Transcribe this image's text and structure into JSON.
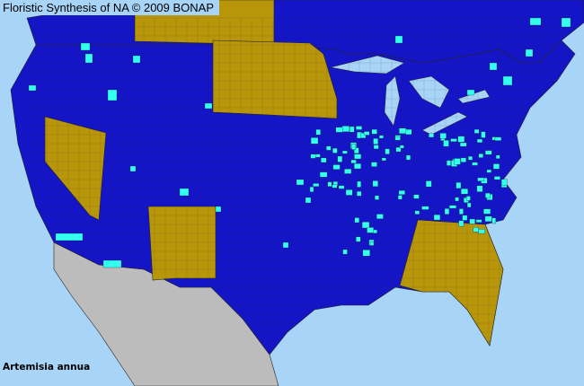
{
  "header": {
    "title": "Floristic Synthesis of NA © 2009 BONAP"
  },
  "map": {
    "species": "Artemisia annua",
    "region": "North America (USA, southern Canada, northern Mexico)",
    "colors": {
      "water": "#a8d4f8",
      "present_in_state": "#1414c8",
      "state_not_present": "#b8960a",
      "county_present": "#33ffee",
      "outside_area": "#bcbcbc",
      "county_lines": "#333333"
    }
  }
}
